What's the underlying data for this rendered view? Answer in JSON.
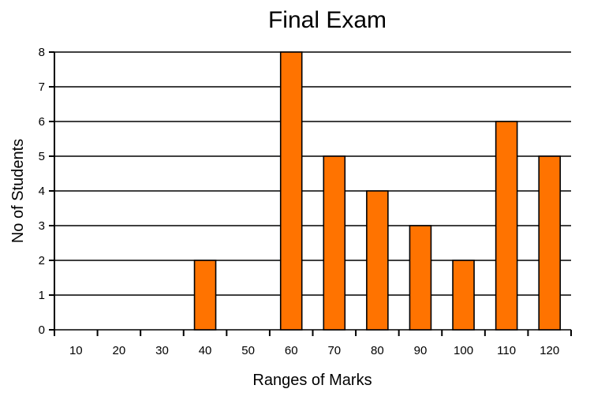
{
  "chart_data": {
    "type": "bar",
    "title": "Final Exam",
    "xlabel": "Ranges of Marks",
    "ylabel": "No of Students",
    "categories": [
      "10",
      "20",
      "30",
      "40",
      "50",
      "60",
      "70",
      "80",
      "90",
      "100",
      "110",
      "120"
    ],
    "values": [
      0,
      0,
      0,
      2,
      0,
      8,
      5,
      4,
      3,
      2,
      6,
      5
    ],
    "y_ticks": [
      "0",
      "1",
      "2",
      "3",
      "4",
      "5",
      "6",
      "7",
      "8"
    ],
    "ylim": [
      0,
      8
    ],
    "grid": true,
    "bar_color": "#ff7300"
  }
}
